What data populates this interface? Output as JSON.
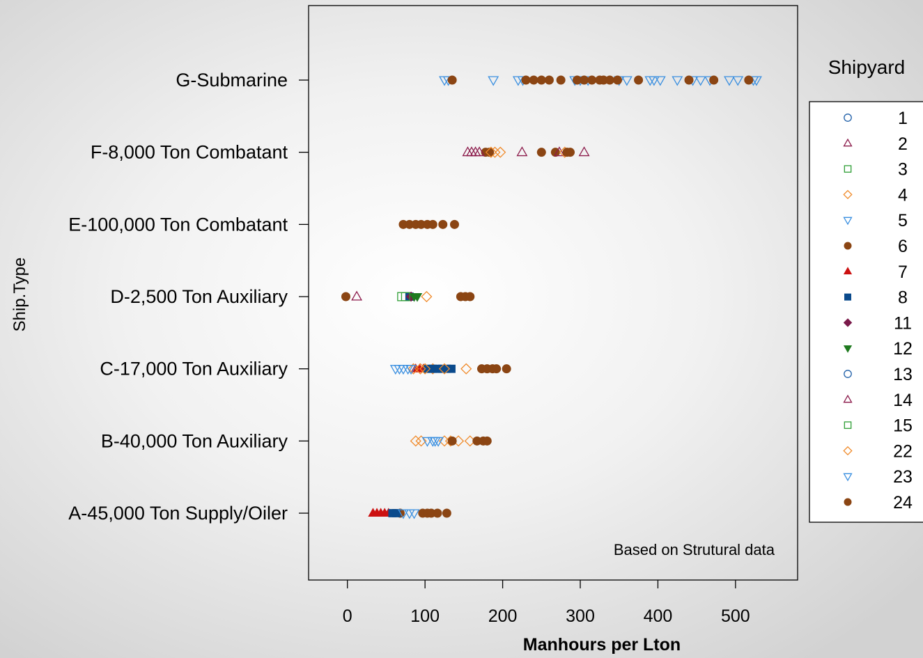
{
  "chart_data": {
    "type": "scatter",
    "title": "",
    "xlabel": "Manhours per Lton",
    "ylabel": "Ship.Type",
    "annotation": "Based on Strutural data",
    "xlim": [
      -50,
      580
    ],
    "x_ticks": [
      "0",
      "100",
      "200",
      "300",
      "400",
      "500"
    ],
    "categories": [
      "A-45,000 Ton Supply/Oiler",
      "B-40,000 Ton Auxiliary",
      "C-17,000 Ton Auxiliary",
      "D-2,500 Ton Auxiliary",
      "E-100,000 Ton Combatant",
      "F-8,000 Ton Combatant",
      "G-Submarine"
    ],
    "legend_title": "Shipyard",
    "legend_position": "right",
    "series": [
      {
        "name": "1",
        "symbol": "circle-open",
        "color": "#1f5fa8",
        "points": []
      },
      {
        "name": "2",
        "symbol": "triangle-open",
        "color": "#8b1a4a",
        "points": [
          {
            "cat": "F-8,000 Ton Combatant",
            "x": 225
          },
          {
            "cat": "F-8,000 Ton Combatant",
            "x": 305
          }
        ]
      },
      {
        "name": "3",
        "symbol": "square-open",
        "color": "#2e9e35",
        "points": [
          {
            "cat": "D-2,500 Ton Auxiliary",
            "x": 70
          }
        ]
      },
      {
        "name": "4",
        "symbol": "diamond-open",
        "color": "#f08a2a",
        "points": [
          {
            "cat": "D-2,500 Ton Auxiliary",
            "x": 102
          },
          {
            "cat": "C-17,000 Ton Auxiliary",
            "x": 153
          },
          {
            "cat": "F-8,000 Ton Combatant",
            "x": 190
          },
          {
            "cat": "F-8,000 Ton Combatant",
            "x": 197
          },
          {
            "cat": "B-40,000 Ton Auxiliary",
            "x": 88
          },
          {
            "cat": "B-40,000 Ton Auxiliary",
            "x": 95
          },
          {
            "cat": "B-40,000 Ton Auxiliary",
            "x": 125
          },
          {
            "cat": "B-40,000 Ton Auxiliary",
            "x": 133
          },
          {
            "cat": "B-40,000 Ton Auxiliary",
            "x": 143
          },
          {
            "cat": "B-40,000 Ton Auxiliary",
            "x": 158
          },
          {
            "cat": "C-17,000 Ton Auxiliary",
            "x": 110
          }
        ]
      },
      {
        "name": "5",
        "symbol": "triangle-down-open",
        "color": "#3a8fe0",
        "points": [
          {
            "cat": "G-Submarine",
            "x": 125
          },
          {
            "cat": "G-Submarine",
            "x": 130
          },
          {
            "cat": "G-Submarine",
            "x": 188
          },
          {
            "cat": "G-Submarine",
            "x": 220
          },
          {
            "cat": "G-Submarine",
            "x": 226
          },
          {
            "cat": "C-17,000 Ton Auxiliary",
            "x": 62
          },
          {
            "cat": "C-17,000 Ton Auxiliary",
            "x": 67
          },
          {
            "cat": "C-17,000 Ton Auxiliary",
            "x": 72
          },
          {
            "cat": "C-17,000 Ton Auxiliary",
            "x": 78
          },
          {
            "cat": "B-40,000 Ton Auxiliary",
            "x": 103
          },
          {
            "cat": "B-40,000 Ton Auxiliary",
            "x": 110
          },
          {
            "cat": "B-40,000 Ton Auxiliary",
            "x": 117
          }
        ]
      },
      {
        "name": "6",
        "symbol": "circle-filled",
        "color": "#8b4513",
        "points": [
          {
            "cat": "G-Submarine",
            "x": 135
          },
          {
            "cat": "G-Submarine",
            "x": 230
          },
          {
            "cat": "G-Submarine",
            "x": 240
          },
          {
            "cat": "G-Submarine",
            "x": 250
          },
          {
            "cat": "G-Submarine",
            "x": 260
          },
          {
            "cat": "G-Submarine",
            "x": 275
          },
          {
            "cat": "F-8,000 Ton Combatant",
            "x": 178
          },
          {
            "cat": "F-8,000 Ton Combatant",
            "x": 183
          },
          {
            "cat": "F-8,000 Ton Combatant",
            "x": 250
          },
          {
            "cat": "F-8,000 Ton Combatant",
            "x": 268
          },
          {
            "cat": "E-100,000 Ton Combatant",
            "x": 72
          },
          {
            "cat": "E-100,000 Ton Combatant",
            "x": 80
          },
          {
            "cat": "E-100,000 Ton Combatant",
            "x": 88
          },
          {
            "cat": "E-100,000 Ton Combatant",
            "x": 95
          },
          {
            "cat": "D-2,500 Ton Auxiliary",
            "x": -2
          },
          {
            "cat": "D-2,500 Ton Auxiliary",
            "x": 146
          },
          {
            "cat": "D-2,500 Ton Auxiliary",
            "x": 152
          },
          {
            "cat": "D-2,500 Ton Auxiliary",
            "x": 158
          },
          {
            "cat": "C-17,000 Ton Auxiliary",
            "x": 173
          },
          {
            "cat": "C-17,000 Ton Auxiliary",
            "x": 180
          },
          {
            "cat": "C-17,000 Ton Auxiliary",
            "x": 187
          },
          {
            "cat": "C-17,000 Ton Auxiliary",
            "x": 192
          },
          {
            "cat": "C-17,000 Ton Auxiliary",
            "x": 205
          },
          {
            "cat": "B-40,000 Ton Auxiliary",
            "x": 135
          },
          {
            "cat": "B-40,000 Ton Auxiliary",
            "x": 167
          },
          {
            "cat": "B-40,000 Ton Auxiliary",
            "x": 175
          },
          {
            "cat": "B-40,000 Ton Auxiliary",
            "x": 180
          },
          {
            "cat": "A-45,000 Ton Supply/Oiler",
            "x": 68
          },
          {
            "cat": "A-45,000 Ton Supply/Oiler",
            "x": 97
          },
          {
            "cat": "A-45,000 Ton Supply/Oiler",
            "x": 103
          },
          {
            "cat": "A-45,000 Ton Supply/Oiler",
            "x": 108
          },
          {
            "cat": "A-45,000 Ton Supply/Oiler",
            "x": 116
          },
          {
            "cat": "A-45,000 Ton Supply/Oiler",
            "x": 128
          }
        ]
      },
      {
        "name": "7",
        "symbol": "triangle-filled",
        "color": "#cc1111",
        "points": [
          {
            "cat": "A-45,000 Ton Supply/Oiler",
            "x": 33
          },
          {
            "cat": "A-45,000 Ton Supply/Oiler",
            "x": 38
          },
          {
            "cat": "A-45,000 Ton Supply/Oiler",
            "x": 43
          },
          {
            "cat": "A-45,000 Ton Supply/Oiler",
            "x": 48
          },
          {
            "cat": "A-45,000 Ton Supply/Oiler",
            "x": 53
          },
          {
            "cat": "C-17,000 Ton Auxiliary",
            "x": 88
          },
          {
            "cat": "C-17,000 Ton Auxiliary",
            "x": 93
          },
          {
            "cat": "C-17,000 Ton Auxiliary",
            "x": 98
          }
        ]
      },
      {
        "name": "8",
        "symbol": "square-filled",
        "color": "#0b4a8c",
        "points": [
          {
            "cat": "C-17,000 Ton Auxiliary",
            "x": 103
          },
          {
            "cat": "C-17,000 Ton Auxiliary",
            "x": 110
          },
          {
            "cat": "C-17,000 Ton Auxiliary",
            "x": 116
          },
          {
            "cat": "C-17,000 Ton Auxiliary",
            "x": 122
          },
          {
            "cat": "C-17,000 Ton Auxiliary",
            "x": 128
          },
          {
            "cat": "C-17,000 Ton Auxiliary",
            "x": 134
          },
          {
            "cat": "A-45,000 Ton Supply/Oiler",
            "x": 58
          },
          {
            "cat": "A-45,000 Ton Supply/Oiler",
            "x": 63
          },
          {
            "cat": "D-2,500 Ton Auxiliary",
            "x": 80
          }
        ]
      },
      {
        "name": "11",
        "symbol": "diamond-filled",
        "color": "#7a1a4a",
        "points": [
          {
            "cat": "D-2,500 Ton Auxiliary",
            "x": 82
          }
        ]
      },
      {
        "name": "12",
        "symbol": "triangle-down-filled",
        "color": "#1f7a1f",
        "points": [
          {
            "cat": "D-2,500 Ton Auxiliary",
            "x": 86
          },
          {
            "cat": "D-2,500 Ton Auxiliary",
            "x": 90
          }
        ]
      },
      {
        "name": "13",
        "symbol": "circle-open",
        "color": "#1f5fa8",
        "points": []
      },
      {
        "name": "14",
        "symbol": "triangle-open",
        "color": "#8b1a4a",
        "points": [
          {
            "cat": "D-2,500 Ton Auxiliary",
            "x": 12
          },
          {
            "cat": "F-8,000 Ton Combatant",
            "x": 155
          },
          {
            "cat": "F-8,000 Ton Combatant",
            "x": 160
          },
          {
            "cat": "F-8,000 Ton Combatant",
            "x": 165
          },
          {
            "cat": "F-8,000 Ton Combatant",
            "x": 170
          },
          {
            "cat": "F-8,000 Ton Combatant",
            "x": 273
          }
        ]
      },
      {
        "name": "15",
        "symbol": "square-open",
        "color": "#2e9e35",
        "points": [
          {
            "cat": "D-2,500 Ton Auxiliary",
            "x": 75
          }
        ]
      },
      {
        "name": "22",
        "symbol": "diamond-open",
        "color": "#f08a2a",
        "points": [
          {
            "cat": "C-17,000 Ton Auxiliary",
            "x": 85
          },
          {
            "cat": "C-17,000 Ton Auxiliary",
            "x": 94
          },
          {
            "cat": "C-17,000 Ton Auxiliary",
            "x": 100
          },
          {
            "cat": "C-17,000 Ton Auxiliary",
            "x": 125
          },
          {
            "cat": "F-8,000 Ton Combatant",
            "x": 185
          },
          {
            "cat": "F-8,000 Ton Combatant",
            "x": 280
          }
        ]
      },
      {
        "name": "23",
        "symbol": "triangle-down-open",
        "color": "#3a8fe0",
        "points": [
          {
            "cat": "G-Submarine",
            "x": 293
          },
          {
            "cat": "G-Submarine",
            "x": 300
          },
          {
            "cat": "G-Submarine",
            "x": 310
          },
          {
            "cat": "G-Submarine",
            "x": 350
          },
          {
            "cat": "G-Submarine",
            "x": 360
          },
          {
            "cat": "G-Submarine",
            "x": 390
          },
          {
            "cat": "G-Submarine",
            "x": 395
          },
          {
            "cat": "G-Submarine",
            "x": 403
          },
          {
            "cat": "G-Submarine",
            "x": 425
          },
          {
            "cat": "G-Submarine",
            "x": 445
          },
          {
            "cat": "G-Submarine",
            "x": 455
          },
          {
            "cat": "G-Submarine",
            "x": 467
          },
          {
            "cat": "G-Submarine",
            "x": 492
          },
          {
            "cat": "G-Submarine",
            "x": 503
          },
          {
            "cat": "G-Submarine",
            "x": 523
          },
          {
            "cat": "G-Submarine",
            "x": 527
          },
          {
            "cat": "A-45,000 Ton Supply/Oiler",
            "x": 72
          },
          {
            "cat": "A-45,000 Ton Supply/Oiler",
            "x": 80
          },
          {
            "cat": "A-45,000 Ton Supply/Oiler",
            "x": 86
          },
          {
            "cat": "B-40,000 Ton Auxiliary",
            "x": 113
          },
          {
            "cat": "C-17,000 Ton Auxiliary",
            "x": 82
          }
        ]
      },
      {
        "name": "24",
        "symbol": "circle-filled",
        "color": "#8b4513",
        "points": [
          {
            "cat": "G-Submarine",
            "x": 296
          },
          {
            "cat": "G-Submarine",
            "x": 305
          },
          {
            "cat": "G-Submarine",
            "x": 315
          },
          {
            "cat": "G-Submarine",
            "x": 325
          },
          {
            "cat": "G-Submarine",
            "x": 330
          },
          {
            "cat": "G-Submarine",
            "x": 338
          },
          {
            "cat": "G-Submarine",
            "x": 348
          },
          {
            "cat": "G-Submarine",
            "x": 375
          },
          {
            "cat": "G-Submarine",
            "x": 440
          },
          {
            "cat": "G-Submarine",
            "x": 472
          },
          {
            "cat": "G-Submarine",
            "x": 517
          },
          {
            "cat": "F-8,000 Ton Combatant",
            "x": 283
          },
          {
            "cat": "F-8,000 Ton Combatant",
            "x": 287
          },
          {
            "cat": "E-100,000 Ton Combatant",
            "x": 103
          },
          {
            "cat": "E-100,000 Ton Combatant",
            "x": 110
          },
          {
            "cat": "E-100,000 Ton Combatant",
            "x": 123
          },
          {
            "cat": "E-100,000 Ton Combatant",
            "x": 138
          }
        ]
      }
    ]
  }
}
